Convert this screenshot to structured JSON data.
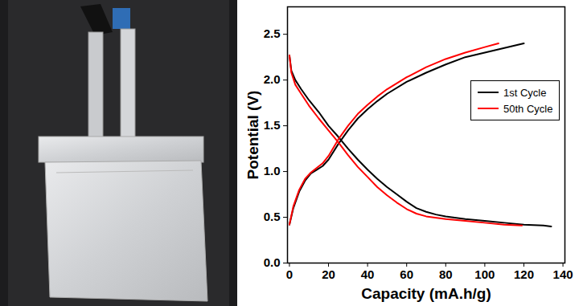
{
  "chart_data": {
    "type": "line",
    "x_label": "Capacity (mA.h/g)",
    "y_label": "Potential (V)",
    "xlim": [
      -1,
      141
    ],
    "ylim": [
      0,
      2.8
    ],
    "xticks": [
      0,
      20,
      40,
      60,
      80,
      100,
      120,
      140
    ],
    "yticks": [
      {
        "value": 0,
        "label": "0.0"
      },
      {
        "value": 0.5,
        "label": "0.5"
      },
      {
        "value": 1,
        "label": "1.0"
      },
      {
        "value": 1.5,
        "label": "1.5"
      },
      {
        "value": 2,
        "label": "2.0"
      },
      {
        "value": 2.5,
        "label": "2.5"
      }
    ],
    "grid": false,
    "legend": "right",
    "series": [
      {
        "name": "1st Cycle",
        "color": "#000000",
        "x": [
          0,
          1,
          3,
          6,
          10,
          15,
          20,
          25,
          30,
          35,
          40,
          45,
          50,
          55,
          60,
          65,
          70,
          75,
          80,
          90,
          100,
          110,
          120,
          130,
          134,
          null,
          0,
          2,
          5,
          8,
          11,
          14,
          17,
          20,
          25,
          30,
          35,
          40,
          45,
          50,
          60,
          70,
          80,
          90,
          100,
          110,
          120
        ],
        "values": [
          2.27,
          2.1,
          2.0,
          1.9,
          1.78,
          1.65,
          1.5,
          1.38,
          1.25,
          1.13,
          1.02,
          0.92,
          0.83,
          0.75,
          0.67,
          0.6,
          0.56,
          0.53,
          0.51,
          0.48,
          0.46,
          0.44,
          0.42,
          0.41,
          0.4,
          null,
          0.42,
          0.6,
          0.78,
          0.9,
          0.98,
          1.02,
          1.06,
          1.13,
          1.3,
          1.45,
          1.58,
          1.68,
          1.77,
          1.85,
          1.98,
          2.08,
          2.17,
          2.25,
          2.3,
          2.35,
          2.4
        ]
      },
      {
        "name": "50th Cycle",
        "color": "#ff0000",
        "x": [
          0,
          1,
          3,
          6,
          10,
          15,
          20,
          25,
          30,
          35,
          40,
          45,
          50,
          55,
          60,
          65,
          70,
          80,
          90,
          100,
          110,
          119,
          null,
          0,
          2,
          5,
          8,
          11,
          14,
          17,
          20,
          25,
          30,
          35,
          40,
          45,
          50,
          60,
          70,
          80,
          90,
          100,
          107
        ],
        "values": [
          2.27,
          2.08,
          1.95,
          1.85,
          1.72,
          1.58,
          1.45,
          1.32,
          1.18,
          1.05,
          0.94,
          0.83,
          0.74,
          0.66,
          0.59,
          0.54,
          0.51,
          0.48,
          0.46,
          0.44,
          0.42,
          0.41,
          null,
          0.42,
          0.62,
          0.8,
          0.92,
          0.99,
          1.04,
          1.09,
          1.17,
          1.35,
          1.5,
          1.63,
          1.73,
          1.82,
          1.9,
          2.03,
          2.14,
          2.23,
          2.3,
          2.36,
          2.4
        ]
      }
    ]
  }
}
